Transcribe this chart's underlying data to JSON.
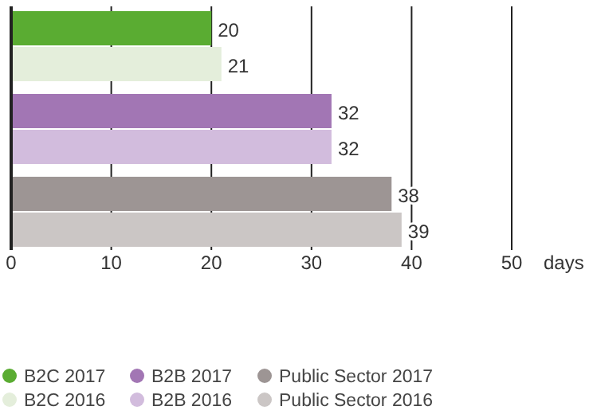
{
  "chart_data": {
    "type": "bar",
    "orientation": "horizontal",
    "xlabel": "days",
    "categories": [
      null,
      null,
      null,
      null,
      null,
      null
    ],
    "series": [
      {
        "name": "B2C 2017",
        "color": "#5aac32",
        "values": [
          20,
          null,
          null,
          null,
          null,
          null
        ]
      },
      {
        "name": "B2C 2016",
        "color": "#e4eedb",
        "values": [
          null,
          21,
          null,
          null,
          null,
          null
        ]
      },
      {
        "name": "B2B 2017",
        "color": "#a276b4",
        "values": [
          null,
          null,
          32,
          null,
          null,
          null
        ]
      },
      {
        "name": "B2B 2016",
        "color": "#d2bcdd",
        "values": [
          null,
          null,
          null,
          32,
          null,
          null
        ]
      },
      {
        "name": "Public Sector 2017",
        "color": "#9d9594",
        "values": [
          null,
          null,
          null,
          null,
          38,
          null
        ]
      },
      {
        "name": "Public Sector 2016",
        "color": "#cbc6c5",
        "values": [
          null,
          null,
          null,
          null,
          null,
          39
        ]
      }
    ],
    "xlim": [
      0,
      50
    ],
    "xticks": [
      0,
      10,
      20,
      30,
      40,
      50
    ],
    "grid": "x",
    "data_labels": true,
    "legend": "bottom"
  }
}
